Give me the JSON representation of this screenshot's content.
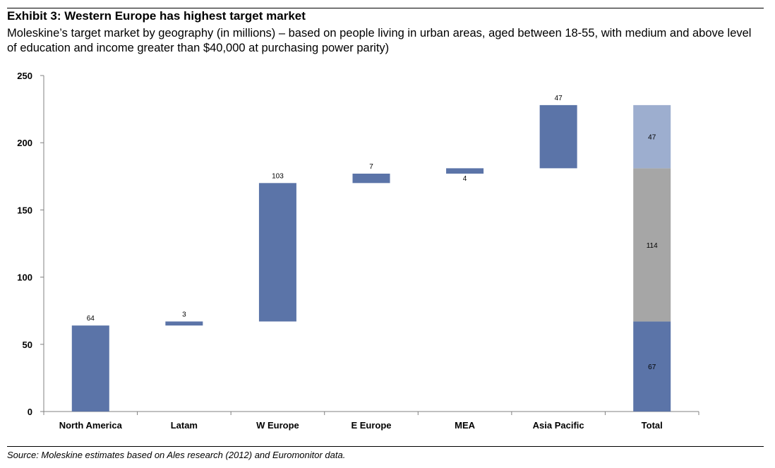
{
  "header": {
    "title": "Exhibit 3: Western Europe has highest target market",
    "subtitle": "Moleskine’s target market by geography (in millions) – based on people living in urban areas, aged between 18-55, with medium and above level of education and income greater than $40,000 at purchasing power parity)"
  },
  "footer": {
    "source": "Source: Moleskine estimates based on Ales research (2012) and Euromonitor data."
  },
  "chart_data": {
    "type": "bar",
    "subtype": "waterfall",
    "title": "Exhibit 3: Western Europe has highest target market",
    "xlabel": "",
    "ylabel": "",
    "ylim": [
      0,
      250
    ],
    "yticks": [
      0,
      50,
      100,
      150,
      200,
      250
    ],
    "grid": false,
    "legend": "none",
    "categories": [
      "North America",
      "Latam",
      "W Europe",
      "E Europe",
      "MEA",
      "Asia Pacific",
      "Total"
    ],
    "steps": [
      {
        "category": "North America",
        "start": 0,
        "value": 64,
        "label": "64",
        "label_position": "above"
      },
      {
        "category": "Latam",
        "start": 64,
        "value": 3,
        "label": "3",
        "label_position": "above"
      },
      {
        "category": "W Europe",
        "start": 67,
        "value": 103,
        "label": "103",
        "label_position": "above"
      },
      {
        "category": "E Europe",
        "start": 170,
        "value": 7,
        "label": "7",
        "label_position": "above"
      },
      {
        "category": "MEA",
        "start": 177,
        "value": 4,
        "label": "4",
        "label_position": "below"
      },
      {
        "category": "Asia Pacific",
        "start": 181,
        "value": 47,
        "label": "47",
        "label_position": "above"
      }
    ],
    "total": {
      "category": "Total",
      "segments": [
        {
          "start": 0,
          "value": 67,
          "label": "67",
          "color": "#5B74A8"
        },
        {
          "start": 67,
          "value": 114,
          "label": "114",
          "color": "#A6A6A6"
        },
        {
          "start": 181,
          "value": 47,
          "label": "47",
          "color": "#9DAECF"
        }
      ]
    },
    "colors": {
      "bar": "#5B74A8",
      "axis": "#808080"
    }
  }
}
